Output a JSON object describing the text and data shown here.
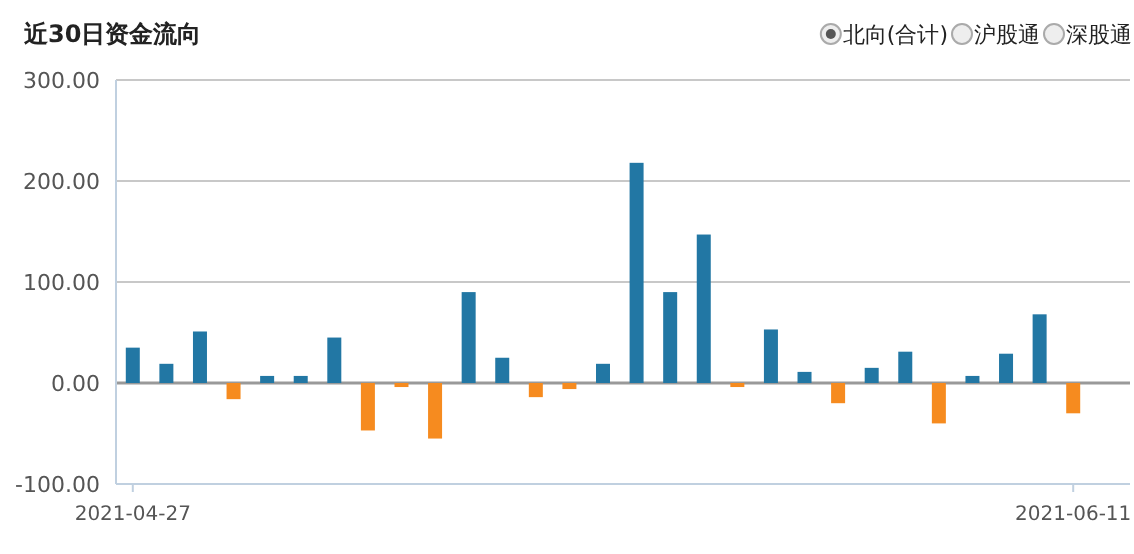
{
  "chart_data": {
    "type": "bar",
    "title": "近30日资金流向",
    "annotations": [
      "北向(合计)",
      "沪股通",
      "深股通"
    ],
    "categories": [
      "2021-04-27",
      null,
      null,
      null,
      null,
      null,
      null,
      null,
      null,
      null,
      null,
      null,
      null,
      null,
      null,
      null,
      null,
      null,
      null,
      null,
      null,
      null,
      null,
      null,
      null,
      null,
      null,
      null,
      "2021-06-11"
    ],
    "values": [
      35,
      19,
      51,
      -16,
      7,
      7,
      45,
      -47,
      -4,
      -55,
      90,
      25,
      -14,
      -6,
      19,
      218,
      90,
      147,
      -4,
      53,
      11,
      -20,
      15,
      31,
      -40,
      7,
      29,
      68,
      -30
    ],
    "colors": [
      "#2277a4",
      "#2277a4",
      "#2277a4",
      "#f68b1f",
      "#2277a4",
      "#2277a4",
      "#2277a4",
      "#f68b1f",
      "#f68b1f",
      "#f68b1f",
      "#2277a4",
      "#2277a4",
      "#f68b1f",
      "#f68b1f",
      "#2277a4",
      "#2277a4",
      "#2277a4",
      "#2277a4",
      "#f68b1f",
      "#2277a4",
      "#2277a4",
      "#f68b1f",
      "#2277a4",
      "#2277a4",
      "#f68b1f",
      "#2277a4",
      "#2277a4",
      "#2277a4",
      "#f68b1f"
    ],
    "ylim": [
      -100,
      300
    ],
    "yticks": [
      {
        "value": -100,
        "label": "-100.00"
      },
      {
        "value": 0,
        "label": "0.00"
      },
      {
        "value": 100,
        "label": "100.00"
      },
      {
        "value": 200,
        "label": "200.00"
      },
      {
        "value": 300,
        "label": "300.00"
      }
    ],
    "grid": "y"
  }
}
